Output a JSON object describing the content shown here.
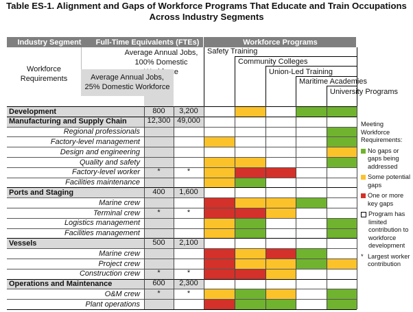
{
  "title_line1": "Table ES-1. Alignment and Gaps of Workforce Programs That Educate and Train Occupations",
  "title_line2": "Across Industry Segments",
  "headers": {
    "industry_segment": "Industry Segment",
    "fte": "Full-Time Equivalents (FTEs)",
    "workforce_programs": "Workforce Programs",
    "workforce_requirements_1": "Workforce",
    "workforce_requirements_2": "Requirements",
    "avg100_1": "Average Annual Jobs,",
    "avg100_2": "100% Domestic Workforce",
    "avg25_1": "Average Annual Jobs,",
    "avg25_2": "25% Domestic Workforce"
  },
  "programs": [
    "Safety Training",
    "Community Colleges",
    "Union-Led Training",
    "Maritime Academies",
    "University Programs"
  ],
  "colors": {
    "green": "#70b32e",
    "yellow": "#fcc22a",
    "red": "#d3312a",
    "white": "#ffffff",
    "grey": "#d9d9d9",
    "header": "#7f7f7f"
  },
  "rows": [
    {
      "label": "Development",
      "type": "segment",
      "v25": "800",
      "v100": "3,200",
      "cells": [
        "w",
        "y",
        "w",
        "g",
        "g"
      ]
    },
    {
      "label": "Manufacturing and Supply Chain",
      "type": "segment",
      "v25": "12,300",
      "v100": "49,000",
      "cells": [
        "w",
        "w",
        "w",
        "w",
        "w"
      ]
    },
    {
      "label": "Regional professionals",
      "type": "sub",
      "v25": "",
      "v100": "",
      "cells": [
        "w",
        "w",
        "w",
        "w",
        "g"
      ]
    },
    {
      "label": "Factory-level management",
      "type": "sub",
      "v25": "",
      "v100": "",
      "cells": [
        "y",
        "w",
        "w",
        "w",
        "g"
      ]
    },
    {
      "label": "Design and engineering",
      "type": "sub",
      "v25": "",
      "v100": "",
      "cells": [
        "w",
        "w",
        "w",
        "w",
        "y"
      ]
    },
    {
      "label": "Quality and safety",
      "type": "sub",
      "v25": "",
      "v100": "",
      "cells": [
        "y",
        "y",
        "w",
        "w",
        "g"
      ]
    },
    {
      "label": "Factory-level worker",
      "type": "sub",
      "v25": "*",
      "v100": "*",
      "cells": [
        "y",
        "r",
        "r",
        "w",
        "w"
      ]
    },
    {
      "label": "Facilities maintenance",
      "type": "sub",
      "v25": "",
      "v100": "",
      "cells": [
        "y",
        "g",
        "w",
        "w",
        "w"
      ]
    },
    {
      "label": "Ports and Staging",
      "type": "segment",
      "v25": "400",
      "v100": "1,600",
      "cells": [
        "w",
        "w",
        "w",
        "w",
        "w"
      ]
    },
    {
      "label": "Marine crew",
      "type": "sub",
      "v25": "",
      "v100": "",
      "cells": [
        "r",
        "y",
        "y",
        "g",
        "w"
      ]
    },
    {
      "label": "Terminal crew",
      "type": "sub",
      "v25": "*",
      "v100": "*",
      "cells": [
        "r",
        "r",
        "y",
        "w",
        "w"
      ]
    },
    {
      "label": "Logistics management",
      "type": "sub",
      "v25": "",
      "v100": "",
      "cells": [
        "y",
        "g",
        "w",
        "w",
        "g"
      ]
    },
    {
      "label": "Facilities management",
      "type": "sub",
      "v25": "",
      "v100": "",
      "cells": [
        "y",
        "g",
        "w",
        "w",
        "g"
      ]
    },
    {
      "label": "Vessels",
      "type": "segment",
      "v25": "500",
      "v100": "2,100",
      "cells": [
        "w",
        "w",
        "w",
        "w",
        "w"
      ]
    },
    {
      "label": "Marine crew",
      "type": "sub",
      "v25": "",
      "v100": "",
      "cells": [
        "r",
        "y",
        "r",
        "g",
        "w"
      ]
    },
    {
      "label": "Project crew",
      "type": "sub",
      "v25": "",
      "v100": "",
      "cells": [
        "r",
        "y",
        "y",
        "g",
        "y"
      ]
    },
    {
      "label": "Construction crew",
      "type": "sub",
      "v25": "*",
      "v100": "*",
      "cells": [
        "r",
        "r",
        "y",
        "w",
        "w"
      ]
    },
    {
      "label": "Operations and Maintenance",
      "type": "segment",
      "v25": "600",
      "v100": "2,300",
      "cells": [
        "w",
        "w",
        "w",
        "w",
        "w"
      ]
    },
    {
      "label": "O&M crew",
      "type": "sub",
      "v25": "*",
      "v100": "*",
      "cells": [
        "y",
        "g",
        "y",
        "w",
        "g"
      ]
    },
    {
      "label": "Plant operations",
      "type": "sub",
      "v25": "",
      "v100": "",
      "cells": [
        "r",
        "g",
        "g",
        "w",
        "g"
      ]
    }
  ],
  "legend": {
    "heading_1": "Meeting",
    "heading_2": "Workforce",
    "heading_3": "Requirements:",
    "items": [
      {
        "key": "g",
        "text": "No gaps or gaps being addressed"
      },
      {
        "key": "y",
        "text": "Some potential gaps"
      },
      {
        "key": "r",
        "text": "One or more key gaps"
      },
      {
        "key": "w",
        "text": "Program has limited contribution to workforce development"
      }
    ],
    "star_text": "Largest worker contribution",
    "star_mark": "*"
  }
}
